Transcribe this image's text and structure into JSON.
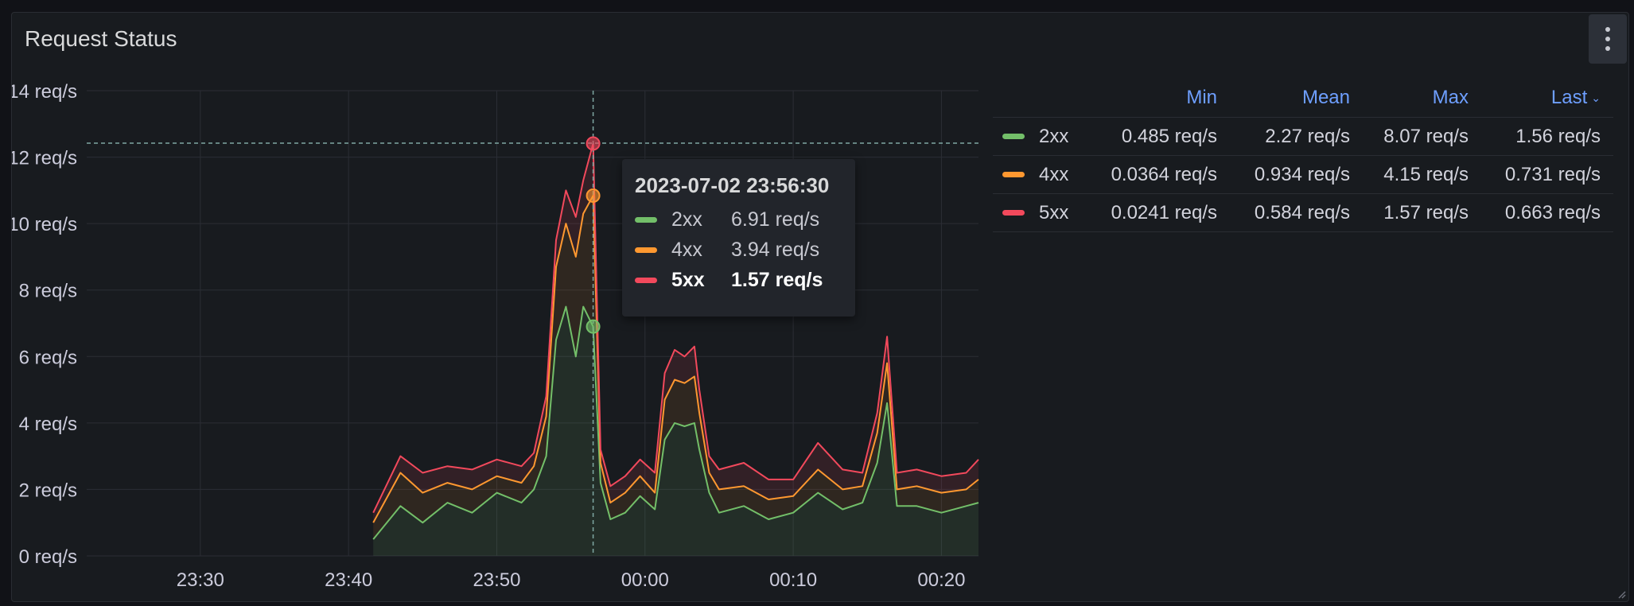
{
  "panel": {
    "title": "Request Status",
    "menu_icon": "kebab-vertical-icon"
  },
  "chart_data": {
    "type": "area",
    "stacked": true,
    "y_tick_labels": [
      "0 req/s",
      "2 req/s",
      "4 req/s",
      "6 req/s",
      "8 req/s",
      "10 req/s",
      "12 req/s",
      "14 req/s"
    ],
    "y_ticks": [
      0,
      2,
      4,
      6,
      8,
      10,
      12,
      14
    ],
    "ylim": [
      0,
      14
    ],
    "y_unit": "req/s",
    "x_tick_labels": [
      "23:30",
      "23:40",
      "23:50",
      "00:00",
      "00:10",
      "00:20"
    ],
    "x_ticks": [
      "2023-07-02 23:30",
      "2023-07-02 23:40",
      "2023-07-02 23:50",
      "2023-07-03 00:00",
      "2023-07-03 00:10",
      "2023-07-03 00:20"
    ],
    "xlim": [
      "2023-07-02 23:22:20",
      "2023-07-03 00:22:30"
    ],
    "x_time": [
      "2023-07-02 23:41:40",
      "2023-07-02 23:43:30",
      "2023-07-02 23:45:00",
      "2023-07-02 23:46:40",
      "2023-07-02 23:48:20",
      "2023-07-02 23:50:00",
      "2023-07-02 23:51:40",
      "2023-07-02 23:52:30",
      "2023-07-02 23:53:20",
      "2023-07-02 23:54:00",
      "2023-07-02 23:54:40",
      "2023-07-02 23:55:20",
      "2023-07-02 23:55:50",
      "2023-07-02 23:56:30",
      "2023-07-02 23:57:00",
      "2023-07-02 23:57:40",
      "2023-07-02 23:58:40",
      "2023-07-02 23:59:40",
      "2023-07-03 00:00:40",
      "2023-07-03 00:01:20",
      "2023-07-03 00:02:00",
      "2023-07-03 00:02:40",
      "2023-07-03 00:03:20",
      "2023-07-03 00:03:40",
      "2023-07-03 00:04:20",
      "2023-07-03 00:05:00",
      "2023-07-03 00:06:40",
      "2023-07-03 00:08:20",
      "2023-07-03 00:10:00",
      "2023-07-03 00:11:40",
      "2023-07-03 00:13:20",
      "2023-07-03 00:14:40",
      "2023-07-03 00:15:40",
      "2023-07-03 00:16:20",
      "2023-07-03 00:17:00",
      "2023-07-03 00:18:20",
      "2023-07-03 00:20:00",
      "2023-07-03 00:21:40",
      "2023-07-03 00:22:30"
    ],
    "series": [
      {
        "name": "2xx",
        "color": "#73bf69",
        "values": [
          0.5,
          1.5,
          1.0,
          1.6,
          1.3,
          1.9,
          1.6,
          2.0,
          3.0,
          6.5,
          7.5,
          6.0,
          7.5,
          6.9,
          2.2,
          1.1,
          1.3,
          1.8,
          1.4,
          3.5,
          4.0,
          3.9,
          4.0,
          3.2,
          1.9,
          1.3,
          1.5,
          1.1,
          1.3,
          1.9,
          1.4,
          1.6,
          2.8,
          4.6,
          1.5,
          1.5,
          1.3,
          1.5,
          1.6
        ]
      },
      {
        "name": "4xx",
        "color": "#ff9830",
        "values": [
          0.5,
          1.0,
          0.9,
          0.6,
          0.7,
          0.5,
          0.6,
          0.7,
          1.2,
          2.2,
          2.5,
          3.0,
          2.8,
          3.94,
          0.6,
          0.5,
          0.6,
          0.6,
          0.5,
          1.2,
          1.3,
          1.3,
          1.4,
          1.1,
          0.6,
          0.7,
          0.6,
          0.6,
          0.5,
          0.7,
          0.6,
          0.5,
          0.9,
          1.2,
          0.5,
          0.6,
          0.6,
          0.5,
          0.7
        ]
      },
      {
        "name": "5xx",
        "color": "#f2495c",
        "values": [
          0.3,
          0.5,
          0.6,
          0.5,
          0.6,
          0.5,
          0.5,
          0.4,
          0.6,
          0.8,
          1.0,
          1.2,
          1.0,
          1.57,
          0.4,
          0.5,
          0.5,
          0.5,
          0.6,
          0.8,
          0.9,
          0.8,
          0.9,
          0.7,
          0.5,
          0.6,
          0.7,
          0.6,
          0.5,
          0.8,
          0.6,
          0.4,
          0.6,
          0.8,
          0.5,
          0.5,
          0.5,
          0.5,
          0.6
        ]
      }
    ],
    "hover": {
      "time": "2023-07-02 23:56:30",
      "stack_total": 12.42
    }
  },
  "tooltip": {
    "title": "2023-07-02 23:56:30",
    "rows": [
      {
        "name": "2xx",
        "value": "6.91 req/s",
        "color": "#73bf69"
      },
      {
        "name": "4xx",
        "value": "3.94 req/s",
        "color": "#ff9830"
      },
      {
        "name": "5xx",
        "value": "1.57 req/s",
        "color": "#f2495c"
      }
    ]
  },
  "legend": {
    "columns": {
      "min": "Min",
      "mean": "Mean",
      "max": "Max",
      "last": "Last"
    },
    "sort_icon": "chevron-down-icon",
    "rows": [
      {
        "name": "2xx",
        "color": "#73bf69",
        "min": "0.485 req/s",
        "mean": "2.27 req/s",
        "max": "8.07 req/s",
        "last": "1.56 req/s"
      },
      {
        "name": "4xx",
        "color": "#ff9830",
        "min": "0.0364 req/s",
        "mean": "0.934 req/s",
        "max": "4.15 req/s",
        "last": "0.731 req/s"
      },
      {
        "name": "5xx",
        "color": "#f2495c",
        "min": "0.0241 req/s",
        "mean": "0.584 req/s",
        "max": "1.57 req/s",
        "last": "0.663 req/s"
      }
    ]
  }
}
